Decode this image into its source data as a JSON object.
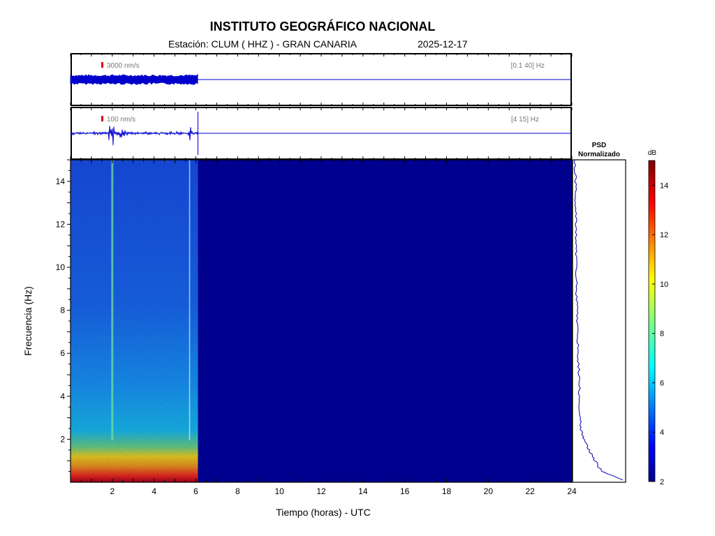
{
  "header": {
    "title": "INSTITUTO GEOGRÁFICO NACIONAL",
    "station": "Estación:  CLUM ( HHZ ) - GRAN CANARIA",
    "date": "2025-12-17"
  },
  "traces": [
    {
      "scale_label": "3000 nm/s",
      "band_label": "[0.1 40] Hz",
      "data_end_hours": 6.1
    },
    {
      "scale_label": "100 nm/s",
      "band_label": "[4 15] Hz",
      "data_end_hours": 6.1,
      "events_hours": [
        2.0,
        5.7
      ]
    }
  ],
  "psd_title_line1": "PSD",
  "psd_title_line2": "Normalizado",
  "colorbar": {
    "unit": "dB",
    "min": 2,
    "max": 15,
    "ticks": [
      2,
      4,
      6,
      8,
      10,
      12,
      14
    ],
    "colormap": "jet",
    "accent_low": "#00008f",
    "accent_high": "#800000"
  },
  "chart_data": {
    "type": "heatmap",
    "title": "INSTITUTO GEOGRÁFICO NACIONAL",
    "xlabel": "Tiempo (horas) - UTC",
    "ylabel": "Frecuencia  (Hz)",
    "xlim": [
      0,
      24
    ],
    "ylim": [
      0,
      15
    ],
    "x_ticks": [
      2,
      4,
      6,
      8,
      10,
      12,
      14,
      16,
      18,
      20,
      22,
      24
    ],
    "y_ticks": [
      2,
      4,
      6,
      8,
      10,
      12,
      14
    ],
    "data_end_hours": 6.1,
    "event_lines_hours": [
      2.0,
      5.7
    ],
    "psd_normalized": {
      "freq_hz": [
        0.1,
        0.5,
        1,
        1.5,
        2,
        2.5,
        3,
        4,
        5,
        6,
        7,
        8,
        9,
        10,
        11,
        12,
        13,
        14,
        15
      ],
      "level": [
        0.98,
        0.55,
        0.42,
        0.3,
        0.2,
        0.14,
        0.12,
        0.11,
        0.1,
        0.08,
        0.07,
        0.06,
        0.05,
        0.05,
        0.04,
        0.04,
        0.03,
        0.03,
        0.02
      ]
    }
  }
}
